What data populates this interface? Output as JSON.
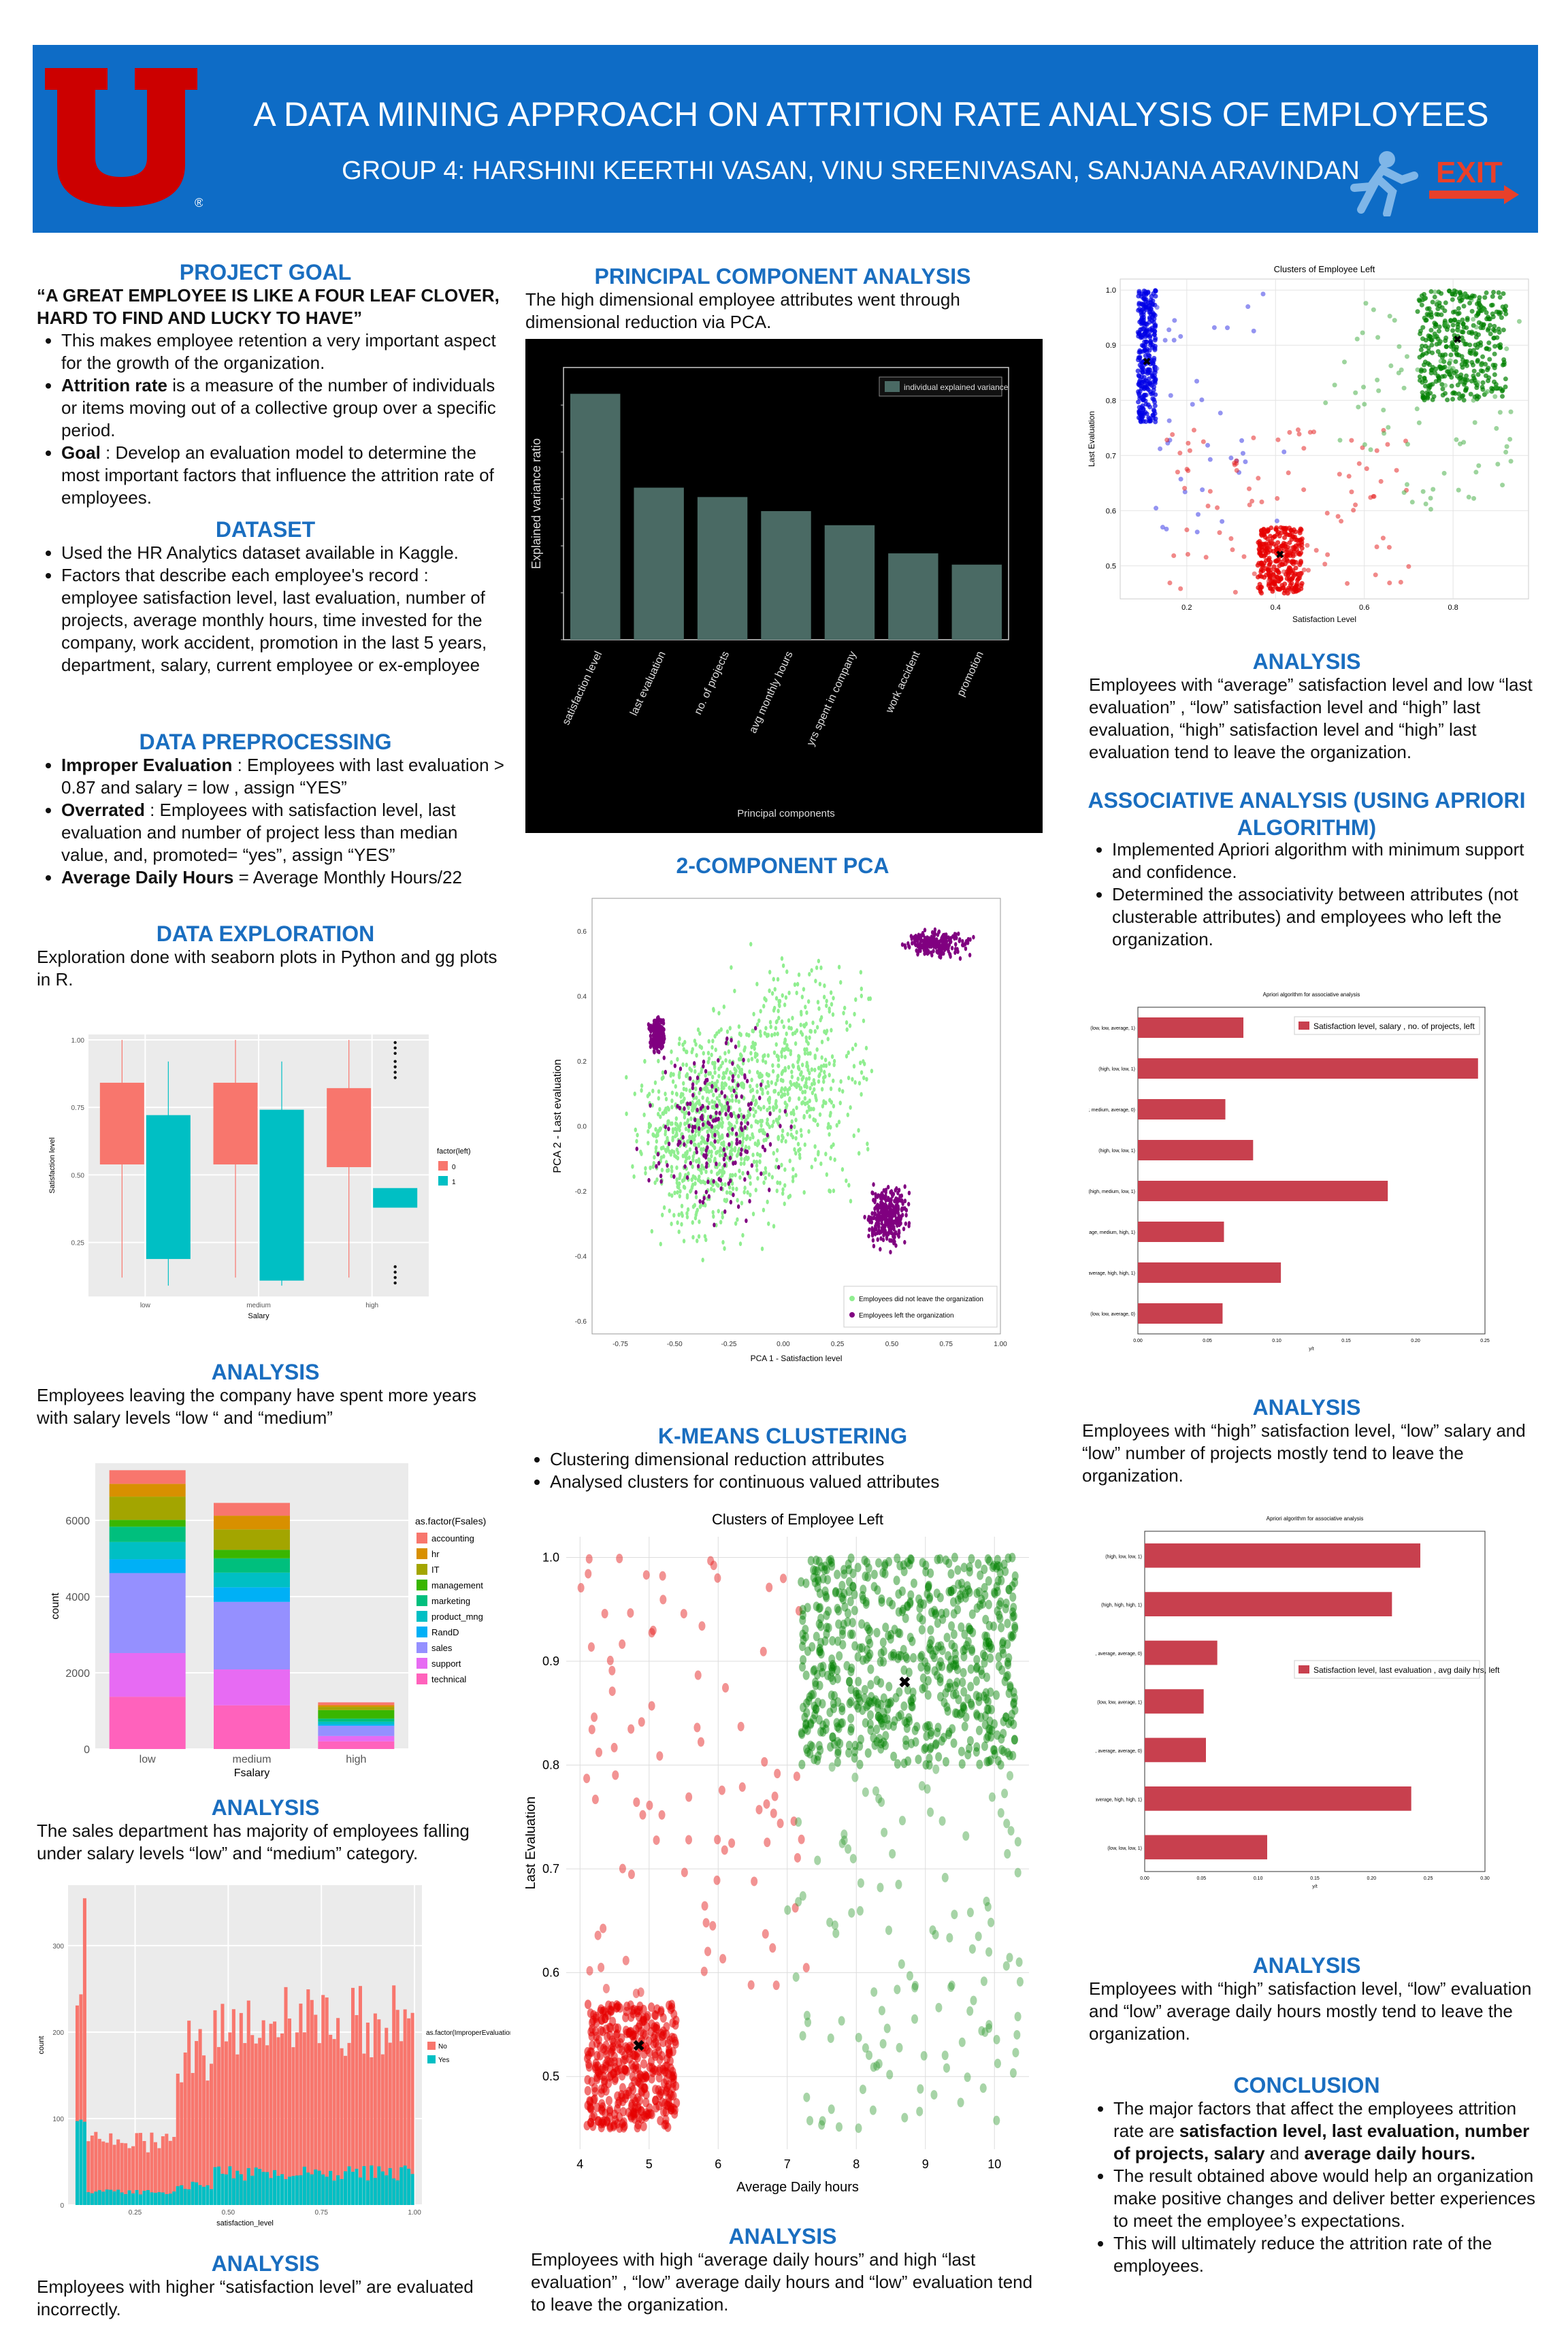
{
  "header": {
    "title": "A DATA MINING APPROACH ON ATTRITION RATE ANALYSIS OF EMPLOYEES",
    "authors": "GROUP 4: HARSHINI KEERTHI VASAN, VINU SREENIVASAN, SANJANA ARAVINDAN",
    "logo_letter": "U",
    "exit_label": "EXIT",
    "brand_color": "#0e6cc6",
    "logo_color": "#cc0000"
  },
  "project_goal": {
    "title": "PROJECT GOAL",
    "quote": "“A GREAT EMPLOYEE IS LIKE A FOUR LEAF CLOVER, HARD TO FIND AND LUCKY TO HAVE”",
    "b1": "This makes employee retention a very important aspect for the growth of  the organization.",
    "b2_bold": "Attrition rate",
    "b2": " is a measure of the number of individuals or items moving out of a collective group over a specific period.",
    "b3_bold": "Goal",
    "b3": " : Develop an evaluation model to determine the most important factors that influence the attrition rate of employees."
  },
  "dataset": {
    "title": "DATASET",
    "b1": "Used the HR Analytics dataset available in Kaggle.",
    "b2": "Factors that describe each employee's record : employee satisfaction level, last evaluation, number of projects, average monthly hours, time invested for the company, work accident, promotion in the last 5 years, department, salary, current employee or ex-employee"
  },
  "preprocessing": {
    "title": "DATA PREPROCESSING",
    "b1_bold": "Improper Evaluation",
    "b1": " : Employees with last evaluation > 0.87 and salary = low , assign “YES”",
    "b2_bold": "Overrated",
    "b2": " : Employees with satisfaction level, last evaluation and number of project less than median value, and, promoted= “yes”, assign “YES”",
    "b3_bold": "Average Daily Hours",
    "b3": " = Average Monthly Hours/22"
  },
  "exploration": {
    "title": "DATA EXPLORATION",
    "text": "Exploration done with seaborn plots in Python and gg plots in R."
  },
  "analysis1": {
    "title": "ANALYSIS",
    "text": "Employees leaving the company have spent more years with salary levels “low “ and “medium”"
  },
  "analysis2": {
    "title": "ANALYSIS",
    "text": "The sales department has majority of employees falling under salary levels “low” and “medium” category."
  },
  "analysis3": {
    "title": "ANALYSIS",
    "text": "Employees with higher “satisfaction level” are evaluated incorrectly."
  },
  "pca": {
    "title": "PRINCIPAL COMPONENT ANALYSIS",
    "text": "The high dimensional employee attributes went through dimensional reduction via PCA."
  },
  "pca2": {
    "title": "2-COMPONENT PCA"
  },
  "kmeans": {
    "title": "K-MEANS CLUSTERING",
    "b1": "Clustering dimensional reduction attributes",
    "b2": "Analysed clusters for continuous valued attributes"
  },
  "analysis4": {
    "title": "ANALYSIS",
    "text": "Employees with high “average daily hours” and high “last evaluation” , “low” average daily hours and “low” evaluation tend to leave the organization."
  },
  "analysis5": {
    "title": "ANALYSIS",
    "text": "Employees with “average” satisfaction level and low “last evaluation” , “low” satisfaction level and “high” last evaluation, “high” satisfaction level and “high” last evaluation tend to leave the organization."
  },
  "assoc": {
    "title": "ASSOCIATIVE ANALYSIS (USING APRIORI ALGORITHM)",
    "b1": "Implemented Apriori algorithm with minimum support and confidence.",
    "b2": "Determined the associativity between attributes (not clusterable attributes) and employees who left the organization."
  },
  "analysis6": {
    "title": "ANALYSIS",
    "text": "Employees with “high” satisfaction level, “low” salary and “low” number of projects mostly tend to leave the organization."
  },
  "analysis7": {
    "title": "ANALYSIS",
    "text": "Employees with “high” satisfaction level, “low” evaluation and “low” average daily hours mostly tend to leave the organization."
  },
  "conclusion": {
    "title": "CONCLUSION",
    "b1_pre": "The major factors that affect the employees attrition rate are ",
    "b1_bold": "satisfaction level, last evaluation, number of projects, salary",
    "b1_mid": " and ",
    "b1_bold2": "average daily hours.",
    "b2": "The result obtained above would help an organization make positive changes and deliver better experiences to meet the employee’s expectations.",
    "b3": "This will ultimately reduce the attrition rate of the employees."
  },
  "chart_data": [
    {
      "id": "boxplot",
      "type": "box",
      "xlabel": "Salary",
      "ylabel": "Satisfaction level",
      "categories": [
        "low",
        "medium",
        "high"
      ],
      "legend_title": "factor(left)",
      "legend": [
        "0",
        "1"
      ],
      "colors": [
        "#f8766d",
        "#00bfc4"
      ],
      "yticks": [
        "0.25",
        "0.50",
        "0.75",
        "1.00"
      ],
      "ylim": [
        0.05,
        1.02
      ],
      "boxes": [
        {
          "cat": 0,
          "grp": 0,
          "lo": 0.12,
          "q1": 0.54,
          "med": 0.69,
          "q3": 0.84,
          "hi": 1.0
        },
        {
          "cat": 0,
          "grp": 1,
          "lo": 0.09,
          "q1": 0.19,
          "med": 0.41,
          "q3": 0.72,
          "hi": 0.92
        },
        {
          "cat": 1,
          "grp": 0,
          "lo": 0.12,
          "q1": 0.54,
          "med": 0.69,
          "q3": 0.84,
          "hi": 1.0
        },
        {
          "cat": 1,
          "grp": 1,
          "lo": 0.09,
          "q1": 0.11,
          "med": 0.41,
          "q3": 0.74,
          "hi": 0.92
        },
        {
          "cat": 2,
          "grp": 0,
          "lo": 0.12,
          "q1": 0.53,
          "med": 0.66,
          "q3": 0.82,
          "hi": 1.0
        },
        {
          "cat": 2,
          "grp": 1,
          "lo": 0.38,
          "q1": 0.38,
          "med": 0.41,
          "q3": 0.45,
          "hi": 0.45
        }
      ]
    },
    {
      "id": "stacked",
      "type": "bar",
      "xlabel": "Fsalary",
      "ylabel": "count",
      "categories": [
        "low",
        "medium",
        "high"
      ],
      "legend_title": "as.factor(Fsales)",
      "yticks": [
        "0",
        "2000",
        "4000",
        "6000"
      ],
      "ylim": [
        0,
        7500
      ],
      "series": [
        {
          "name": "accounting",
          "color": "#f8766d",
          "values": [
            358,
            335,
            74
          ]
        },
        {
          "name": "hr",
          "color": "#d89000",
          "values": [
            335,
            359,
            45
          ]
        },
        {
          "name": "IT",
          "color": "#a3a500",
          "values": [
            609,
            535,
            83
          ]
        },
        {
          "name": "management",
          "color": "#39b600",
          "values": [
            180,
            225,
            225
          ]
        },
        {
          "name": "marketing",
          "color": "#00bf7d",
          "values": [
            402,
            376,
            80
          ]
        },
        {
          "name": "product_mng",
          "color": "#00bfc4",
          "values": [
            451,
            383,
            68
          ]
        },
        {
          "name": "RandD",
          "color": "#00b0f6",
          "values": [
            364,
            384,
            39
          ]
        },
        {
          "name": "sales",
          "color": "#9590ff",
          "values": [
            2099,
            1772,
            269
          ]
        },
        {
          "name": "support",
          "color": "#e76bf3",
          "values": [
            1146,
            942,
            141
          ]
        },
        {
          "name": "technical",
          "color": "#ff62bc",
          "values": [
            1372,
            1147,
            201
          ]
        }
      ]
    },
    {
      "id": "histogram",
      "type": "bar",
      "xlabel": "satisfaction_level",
      "ylabel": "count",
      "legend_title": "as.factor(ImproperEvaluation)",
      "legend": [
        "No",
        "Yes"
      ],
      "colors": [
        "#f8766d",
        "#00bfc4"
      ],
      "xticks": [
        "0.25",
        "0.50",
        "0.75",
        "1.00"
      ],
      "yticks": [
        "0",
        "100",
        "200",
        "300"
      ],
      "xlim": [
        0.07,
        1.02
      ],
      "ylim": [
        0,
        370
      ]
    },
    {
      "id": "pca_bar",
      "type": "bar",
      "xlabel": "Principal components",
      "ylabel": "Explained variance ratio",
      "legend": "individual explained variance",
      "categories": [
        "satisfaction level",
        "last evaluation",
        "no. of projects",
        "avg monthly hours",
        "yrs spent in company",
        "work accident",
        "promotion"
      ],
      "values": [
        0.262,
        0.162,
        0.152,
        0.137,
        0.122,
        0.092,
        0.08
      ],
      "ylim": [
        0,
        0.29
      ],
      "color": "#4a6a64"
    },
    {
      "id": "pca2_scatter",
      "type": "scatter",
      "xlabel": "PCA 1 - Satisfaction level",
      "ylabel": "PCA 2 - Last evaluation",
      "legend": [
        "Employees did not leave the organization",
        "Employees left the organization"
      ],
      "colors": [
        "#90ee90",
        "#800080"
      ],
      "xticks": [
        "-0.75",
        "-0.50",
        "-0.25",
        "0.00",
        "0.25",
        "0.50",
        "0.75",
        "1.00"
      ],
      "yticks": [
        "-0.6",
        "-0.4",
        "-0.2",
        "0.0",
        "0.2",
        "0.4",
        "0.6"
      ],
      "xlim": [
        -0.88,
        1.0
      ],
      "ylim": [
        -0.64,
        0.7
      ]
    },
    {
      "id": "kmeans_scatter",
      "type": "scatter",
      "title": "Clusters of Employee Left",
      "xlabel": "Average Daily hours",
      "ylabel": "Last Evaluation",
      "xticks": [
        "4",
        "5",
        "6",
        "7",
        "8",
        "9",
        "10"
      ],
      "yticks": [
        "0.5",
        "0.6",
        "0.7",
        "0.8",
        "0.9",
        "1.0"
      ],
      "xlim": [
        3.8,
        10.5
      ],
      "ylim": [
        0.43,
        1.02
      ],
      "centroids": [
        [
          4.85,
          0.53
        ],
        [
          8.7,
          0.88
        ]
      ]
    },
    {
      "id": "cluster_scatter",
      "type": "scatter",
      "title": "Clusters of Employee Left",
      "xlabel": "Satisfaction Level",
      "ylabel": "Last Evaluation",
      "xticks": [
        "0.2",
        "0.4",
        "0.6",
        "0.8"
      ],
      "yticks": [
        "0.5",
        "0.6",
        "0.7",
        "0.8",
        "0.9",
        "1.0"
      ],
      "xlim": [
        0.05,
        0.97
      ],
      "ylim": [
        0.44,
        1.02
      ],
      "centroids": [
        [
          0.11,
          0.87
        ],
        [
          0.41,
          0.52
        ],
        [
          0.81,
          0.91
        ]
      ]
    },
    {
      "id": "apriori1",
      "type": "bar",
      "title": "Apriori algorithm for associative analysis",
      "legend": "Satisfaction level, salary , no. of projects, left",
      "xlabel": "y/t",
      "categories": [
        "(low, low, average, 1)",
        "(high, low, low, 1)",
        "(low, medium, average, 0)",
        "(high, low, low, 1)",
        "(high, medium, low, 1)",
        "(average, medium, high, 1)",
        "(average, high, high, 1)",
        "(low, low, average, 0)"
      ],
      "values": [
        0.076,
        0.245,
        0.063,
        0.083,
        0.18,
        0.062,
        0.103,
        0.061
      ],
      "xticks": [
        "0.00",
        "0.05",
        "0.10",
        "0.15",
        "0.20",
        "0.25"
      ],
      "xlim": [
        0,
        0.25
      ],
      "color": "#c8404e"
    },
    {
      "id": "apriori2",
      "type": "bar",
      "title": "Apriori algorithm for associative analysis",
      "legend": "Satisfaction level, last evaluation , avg daily hrs, left",
      "xlabel": "y/t",
      "categories": [
        "(high, low, low, 1)",
        "(high, high, high, 1)",
        "(low, average, average, 0)",
        "(low, low, average, 1)",
        "(average, average, average, 0)",
        "(average, high, high, 1)",
        "(low, low, low, 1)"
      ],
      "values": [
        0.243,
        0.218,
        0.064,
        0.052,
        0.054,
        0.235,
        0.108
      ],
      "xticks": [
        "0.00",
        "0.05",
        "0.10",
        "0.15",
        "0.20",
        "0.25",
        "0.30"
      ],
      "xlim": [
        0,
        0.3
      ],
      "color": "#c8404e"
    }
  ]
}
